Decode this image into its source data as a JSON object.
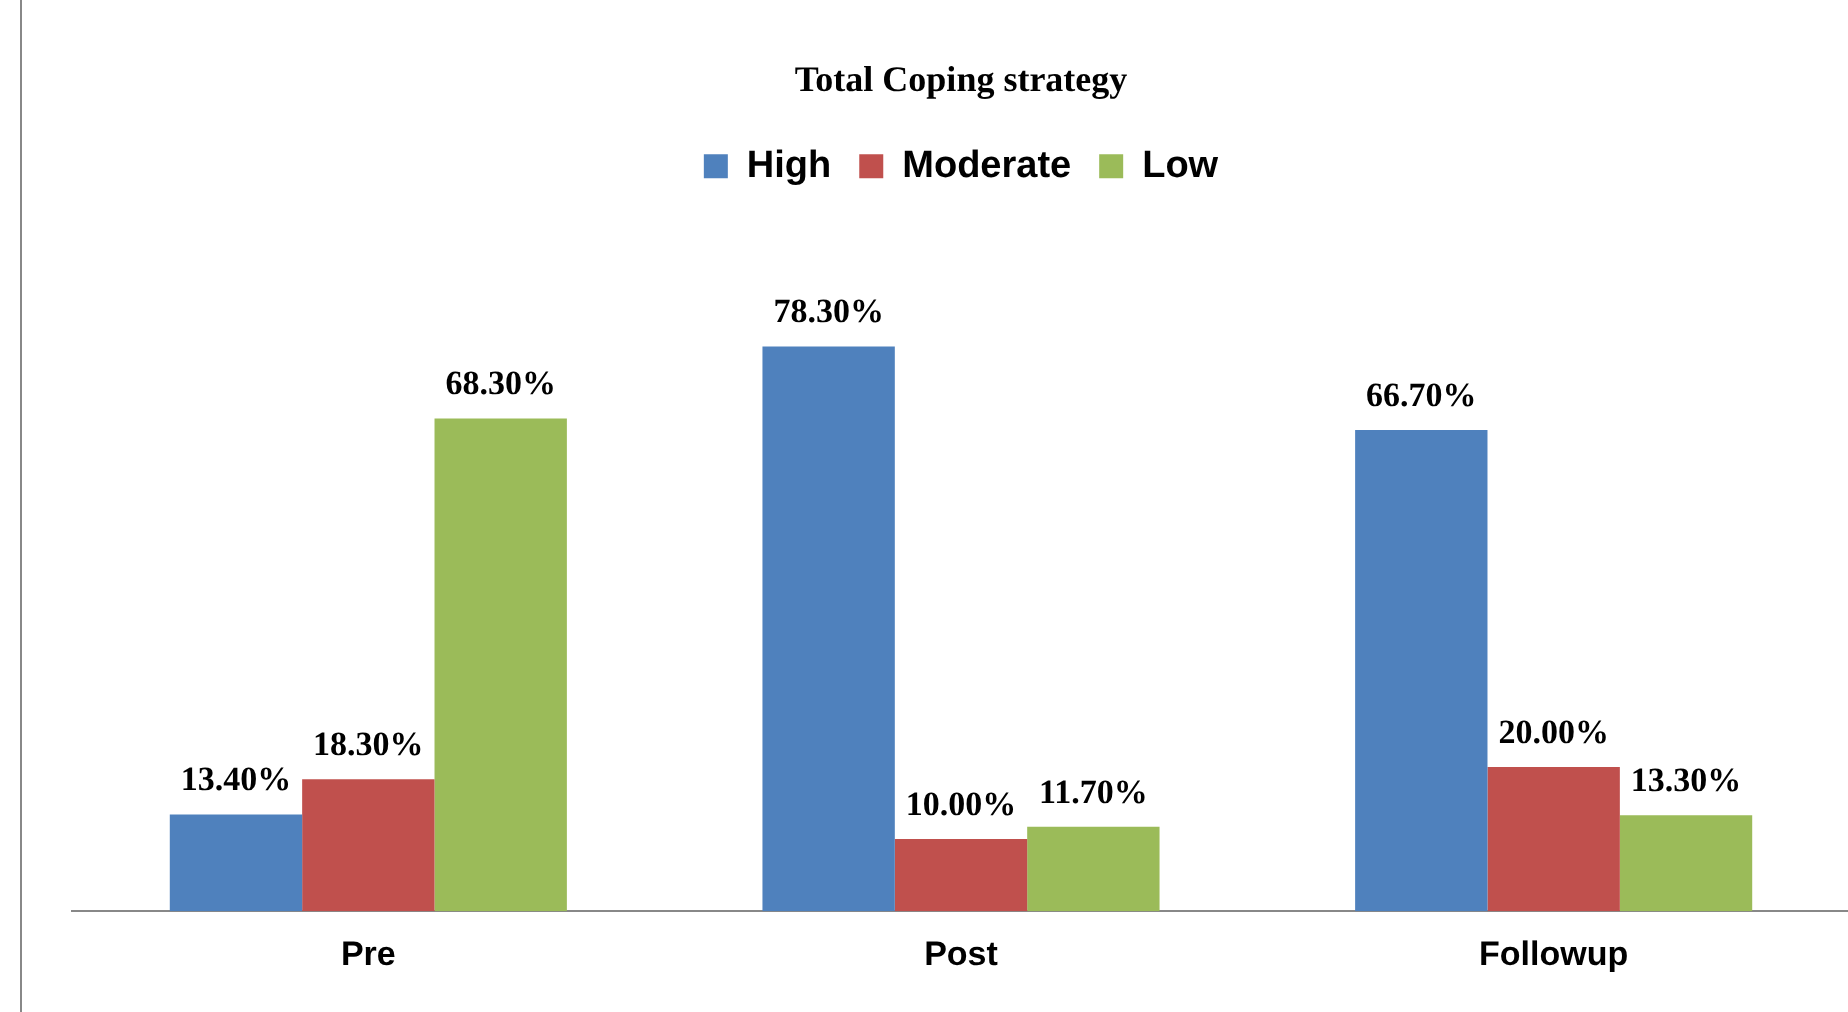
{
  "chart_data": {
    "type": "bar",
    "title": "Total Coping strategy",
    "categories": [
      "Pre",
      "Post",
      "Followup"
    ],
    "series": [
      {
        "name": "High",
        "color": "#4f81bd",
        "values": [
          13.4,
          78.3,
          66.7
        ],
        "value_labels": [
          "13.40%",
          "78.30%",
          "66.70%"
        ]
      },
      {
        "name": "Moderate",
        "color": "#c0504d",
        "values": [
          18.3,
          10.0,
          20.0
        ],
        "value_labels": [
          "18.30%",
          "10.00%",
          "20.00%"
        ]
      },
      {
        "name": "Low",
        "color": "#9bbb59",
        "values": [
          68.3,
          11.7,
          13.3
        ],
        "value_labels": [
          "68.30%",
          "11.70%",
          "13.30%"
        ]
      }
    ],
    "data_labels": true,
    "grid": false,
    "legend": "top",
    "tick_labels": "x"
  }
}
